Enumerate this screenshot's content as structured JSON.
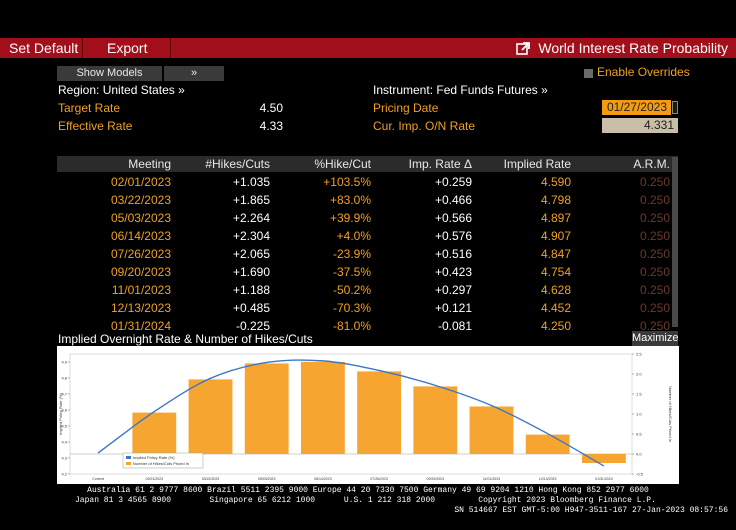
{
  "toolbar": {
    "set_default": "Set Default",
    "export": "Export",
    "title": "World Interest Rate Probability"
  },
  "controls": {
    "show_models": "Show Models",
    "show_models_arrow": "»",
    "enable_overrides": "Enable Overrides",
    "region": "Region: United States »",
    "instrument": "Instrument: Fed Funds Futures »"
  },
  "rates": {
    "target_label": "Target Rate",
    "target_value": "4.50",
    "effective_label": "Effective Rate",
    "effective_value": "4.33",
    "pricing_label": "Pricing Date",
    "pricing_value": "01/27/2023",
    "curimp_label": "Cur. Imp. O/N Rate",
    "curimp_value": "4.331"
  },
  "table": {
    "headers": [
      "Meeting",
      "#Hikes/Cuts",
      "%Hike/Cut",
      "Imp. Rate Δ",
      "Implied Rate",
      "A.R.M."
    ],
    "rows": [
      [
        "02/01/2023",
        "+1.035",
        "+103.5%",
        "+0.259",
        "4.590",
        "0.250"
      ],
      [
        "03/22/2023",
        "+1.865",
        "+83.0%",
        "+0.466",
        "4.798",
        "0.250"
      ],
      [
        "05/03/2023",
        "+2.264",
        "+39.9%",
        "+0.566",
        "4.897",
        "0.250"
      ],
      [
        "06/14/2023",
        "+2.304",
        "+4.0%",
        "+0.576",
        "4.907",
        "0.250"
      ],
      [
        "07/26/2023",
        "+2.065",
        "-23.9%",
        "+0.516",
        "4.847",
        "0.250"
      ],
      [
        "09/20/2023",
        "+1.690",
        "-37.5%",
        "+0.423",
        "4.754",
        "0.250"
      ],
      [
        "11/01/2023",
        "+1.188",
        "-50.2%",
        "+0.297",
        "4.628",
        "0.250"
      ],
      [
        "12/13/2023",
        "+0.485",
        "-70.3%",
        "+0.121",
        "4.452",
        "0.250"
      ],
      [
        "01/31/2024",
        "-0.225",
        "-81.0%",
        "-0.081",
        "4.250",
        "0.250"
      ]
    ]
  },
  "chart_section": {
    "title": "Implied Overnight Rate & Number of Hikes/Cuts",
    "maximize": "Maximize"
  },
  "chart_data": {
    "type": "bar",
    "title": "Implied Overnight Rate & Number of Hikes/Cuts",
    "categories": [
      "Current",
      "02/01/2023",
      "03/22/2023",
      "05/03/2023",
      "06/14/2023",
      "07/26/2023",
      "09/20/2023",
      "11/01/2023",
      "12/13/2023",
      "01/31/2024"
    ],
    "series": [
      {
        "name": "Implied Policy Rate (%)",
        "kind": "line",
        "axis": "left",
        "values": [
          4.331,
          4.59,
          4.798,
          4.897,
          4.907,
          4.847,
          4.754,
          4.628,
          4.452,
          4.25
        ]
      },
      {
        "name": "Number of Hikes/Cuts Priced In",
        "kind": "bar",
        "axis": "right",
        "values": [
          0,
          1.035,
          1.865,
          2.264,
          2.304,
          2.065,
          1.69,
          1.188,
          0.485,
          -0.225
        ]
      }
    ],
    "ylabel": "Implied Policy Rate (%)",
    "y2label": "Number of Hikes/Cuts Priced In",
    "ylim": [
      4.2,
      4.95
    ],
    "y2lim": [
      -0.5,
      2.5
    ],
    "yticks": [
      "4.9",
      "4.8",
      "4.7",
      "4.6",
      "4.5",
      "4.4",
      "4.3",
      "4.2"
    ],
    "y2ticks": [
      "2.5",
      "2.0",
      "1.5",
      "1.0",
      "0.5",
      "0.0",
      "-0.5"
    ],
    "legend": [
      "Implied Policy Rate (%)",
      "Number of Hikes/Cuts Priced In"
    ],
    "colors": {
      "bar": "#f7a531",
      "line": "#3a78c8"
    }
  },
  "footer": {
    "line1": "Australia 61 2 9777 8600 Brazil 5511 2395 9000 Europe 44 20 7330 7500 Germany 49 69 9204 1210 Hong Kong 852 2977 6000",
    "line2": "Japan 81 3 4565 8900        Singapore 65 6212 1000      U.S. 1 212 318 2000         Copyright 2023 Bloomberg Finance L.P.",
    "line3": "SN 514667 EST  GMT-5:00 H947-3511-167 27-Jan-2023 08:57:56"
  }
}
